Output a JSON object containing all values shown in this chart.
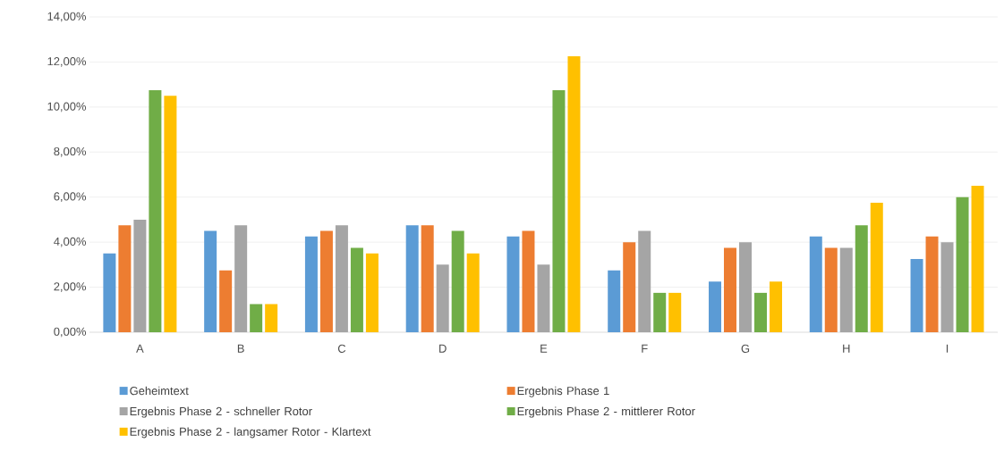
{
  "chart_data": {
    "type": "bar",
    "categories": [
      "A",
      "B",
      "C",
      "D",
      "E",
      "F",
      "G",
      "H",
      "I"
    ],
    "series": [
      {
        "name": "Geheimtext",
        "color": "#5b9bd5",
        "values": [
          3.5,
          4.5,
          4.25,
          4.75,
          4.25,
          2.75,
          2.25,
          4.25,
          3.25
        ]
      },
      {
        "name": "Ergebnis Phase 1",
        "color": "#ed7d31",
        "values": [
          4.75,
          2.75,
          4.5,
          4.75,
          4.5,
          4.0,
          3.75,
          3.75,
          4.25
        ]
      },
      {
        "name": "Ergebnis Phase 2 - schneller Rotor",
        "color": "#a5a5a5",
        "values": [
          5.0,
          4.75,
          4.75,
          3.0,
          3.0,
          4.5,
          4.0,
          3.75,
          4.0
        ]
      },
      {
        "name": "Ergebnis Phase 2 - mittlerer Rotor",
        "color": "#70ad47",
        "values": [
          10.75,
          1.25,
          3.75,
          4.5,
          10.75,
          1.75,
          1.75,
          4.75,
          6.0
        ]
      },
      {
        "name": "Ergebnis Phase 2 - langsamer Rotor - Klartext",
        "color": "#ffc000",
        "values": [
          10.5,
          1.25,
          3.5,
          3.5,
          12.25,
          1.75,
          2.25,
          5.75,
          6.5
        ]
      }
    ],
    "ylim": [
      0,
      14
    ],
    "yticks": [
      {
        "value": 0,
        "label": "0,00%"
      },
      {
        "value": 2,
        "label": "2,00%"
      },
      {
        "value": 4,
        "label": "4,00%"
      },
      {
        "value": 6,
        "label": "6,00%"
      },
      {
        "value": 8,
        "label": "8,00%"
      },
      {
        "value": 10,
        "label": "10,00%"
      },
      {
        "value": 12,
        "label": "12,00%"
      },
      {
        "value": 14,
        "label": "14,00%"
      }
    ],
    "grid": "y",
    "legend": "bottom"
  }
}
